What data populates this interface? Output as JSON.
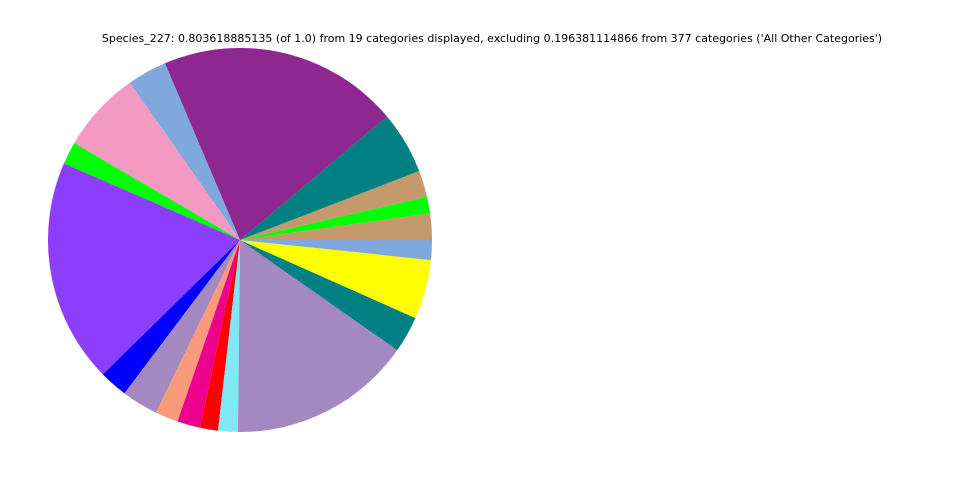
{
  "chart_data": {
    "type": "pie",
    "title": "Species_227: 0.803618885135 (of 1.0) from 19 categories displayed, excluding 0.196381114866 from 377 categories ('All Other Categories')",
    "values": [
      0.0179,
      0.0112,
      0.0179,
      0.0424,
      0.163,
      0.0268,
      0.0551,
      0.0152,
      0.1516,
      0.0192,
      0.0246,
      0.0156,
      0.0156,
      0.0121,
      0.0134,
      0.1241,
      0.0246,
      0.0402,
      0.0134
    ],
    "colors": [
      "#c49a6c",
      "#00ff00",
      "#c49a6c",
      "#008080",
      "#8e278f",
      "#7fa9dc",
      "#f49ac2",
      "#00ff00",
      "#8b3ffc",
      "#0000ff",
      "#a389c0",
      "#f99a7a",
      "#ec008c",
      "#ff0000",
      "#7fe8f2",
      "#a389c0",
      "#008080",
      "#ffff00",
      "#7fa9dc"
    ]
  }
}
